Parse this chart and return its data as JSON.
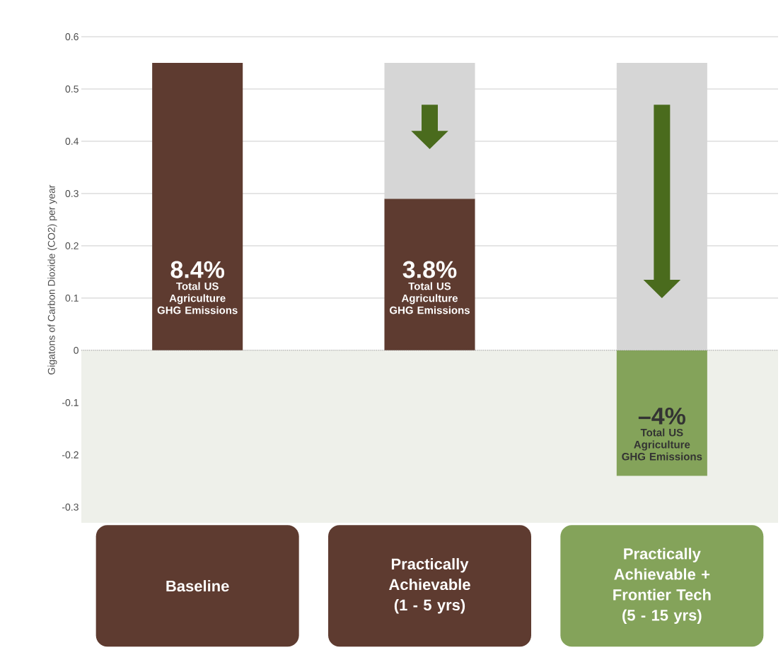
{
  "chart_data": {
    "type": "bar",
    "ylabel": "Gigatons of Carbon Dioxide (CO2) per year",
    "categories": [
      "Baseline",
      "Practically Achievable (1 - 5 yrs)",
      "Practically Achievable + Frontier Tech (5 - 15 yrs)"
    ],
    "series": [
      {
        "values": [
          0.55,
          0.29,
          -0.24
        ],
        "colors": [
          "#5e3b30",
          "#5e3b30",
          "#84a35a"
        ]
      },
      {
        "type": "bar",
        "color": "#d6d6d6",
        "values": [
          null,
          0.26,
          0.55
        ]
      }
    ],
    "stacked": true,
    "ylim": [
      -0.33,
      0.6
    ],
    "yticks": [
      -0.3,
      -0.2,
      -0.1,
      0,
      0.1,
      0.2,
      0.3,
      0.4,
      0.5,
      0.6
    ],
    "grid": "y",
    "ref_lines": [
      {
        "axis": "y",
        "value": 0,
        "line_style": "dotted",
        "color": "#777777"
      }
    ],
    "bands": [
      {
        "axis": "y",
        "from": -0.33,
        "to": 0,
        "color": "#eef0ea"
      }
    ],
    "annotations": [
      "8.4%",
      "Total US Agriculture GHG Emissions",
      "3.8%",
      "Total US Agriculture GHG Emissions",
      "–4%",
      "Total US Agriculture GHG Emissions"
    ]
  }
}
